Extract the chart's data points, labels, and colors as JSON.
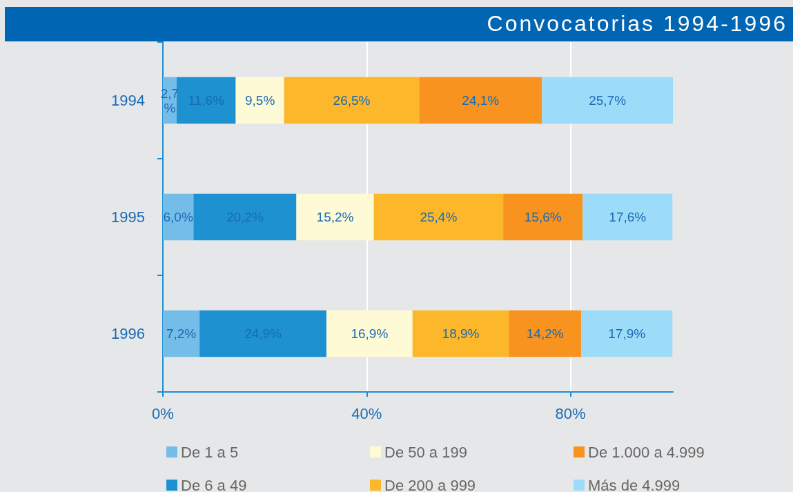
{
  "chart_data": {
    "type": "bar",
    "title": "Convocatorias 1994-1996",
    "orientation": "horizontal",
    "stacked": true,
    "categories": [
      "1994",
      "1995",
      "1996"
    ],
    "series": [
      {
        "name": "De 1 a 5",
        "color": "#74bde8",
        "values": [
          2.7,
          6.0,
          7.2
        ],
        "value_labels": [
          "2,7%",
          "6,0%",
          "7,2%"
        ]
      },
      {
        "name": "De 6 a 49",
        "color": "#1e91d0",
        "values": [
          11.6,
          20.2,
          24.9
        ],
        "value_labels": [
          "11,6%",
          "20,2%",
          "24,9%"
        ]
      },
      {
        "name": "De 50 a 199",
        "color": "#fffad6",
        "values": [
          9.5,
          15.2,
          16.9
        ],
        "value_labels": [
          "9,5%",
          "15,2%",
          "16,9%"
        ]
      },
      {
        "name": "De 200 a 999",
        "color": "#fcb72a",
        "values": [
          26.5,
          25.4,
          18.9
        ],
        "value_labels": [
          "26,5%",
          "25,4%",
          "18,9%"
        ]
      },
      {
        "name": "De 1.000 a 4.999",
        "color": "#f7931e",
        "values": [
          24.1,
          15.6,
          14.2
        ],
        "value_labels": [
          "24,1%",
          "15,6%",
          "14,2%"
        ]
      },
      {
        "name": "Más de 4.999",
        "color": "#9cdcf8",
        "values": [
          25.7,
          17.6,
          17.9
        ],
        "value_labels": [
          "25,7%",
          "17,6%",
          "17,9%"
        ]
      }
    ],
    "xlim": [
      0,
      100.1
    ],
    "xticks": [
      {
        "value": 0,
        "label": "0%"
      },
      {
        "value": 40,
        "label": "40%"
      },
      {
        "value": 80,
        "label": "80%"
      }
    ],
    "grid": "x",
    "legend": "bottom"
  }
}
